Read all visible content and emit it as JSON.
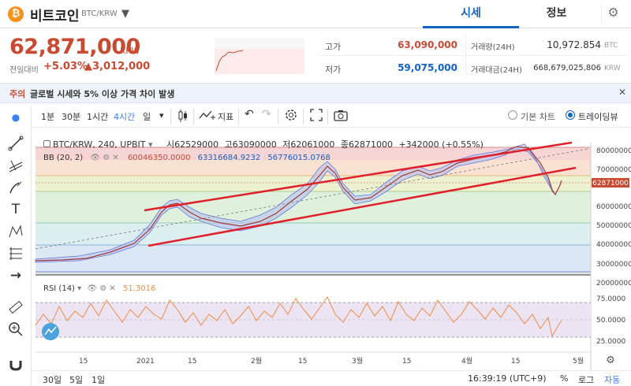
{
  "header": {
    "coin_icon": "₿",
    "coin_name": "비트코인",
    "pair": "BTC/KRW",
    "dropdown_icon": "▼",
    "tab_sise": "시세",
    "tab_info": "정보",
    "gear_icon": "⚙"
  },
  "price_panel": {
    "price": "62,871,000",
    "unit": "KRW",
    "prev_label": "전일대비",
    "change_rate": "+5.03%",
    "change_amount": "▲3,012,000",
    "high_label": "고가",
    "high_value": "63,090,000",
    "low_label": "저가",
    "low_value": "59,075,000",
    "volume_label": "거래량(24H)",
    "volume_value": "10,972.854",
    "volume_unit": "BTC",
    "amount_label": "거래대금(24H)",
    "amount_value": "668,679,025,806",
    "amount_unit": "KRW"
  },
  "notice": {
    "tag": "주의",
    "text": "글로벌 시세와 5% 이상 가격 차이 발생",
    "close_icon": "✕"
  },
  "toolbar": {
    "min1": "1분",
    "min30": "30분",
    "hour1": "1시간",
    "hour4": "4시간",
    "day": "일",
    "dropdown": "▾",
    "indicator": "지표",
    "basic_chart": "기본 차트",
    "tradingview": "트레이딩뷰"
  },
  "chart_legend": {
    "symbol": "BTC/KRW, 240, UPBIT",
    "open": "시62529000",
    "high": "고63090000",
    "low": "저62061000",
    "close": "종62871000",
    "change": "+342000 (+0.55%)",
    "bb_label": "BB (20, 2)",
    "bb_v1": "60046350.0000",
    "bb_v2": "63316684.9232",
    "bb_v3": "56776015.0768",
    "rsi_label": "RSI (14)",
    "rsi_value": "51.3016",
    "last_price_tag": "62871000"
  },
  "axes": {
    "price_ticks": [
      "80000000",
      "70000000",
      "60000000",
      "50000000",
      "40000000",
      "30000000",
      "20000000"
    ],
    "rsi_ticks": [
      "75.0000",
      "50.0000",
      "25.0000"
    ],
    "x_ticks": [
      "15",
      "2021",
      "15",
      "2월",
      "15",
      "3월",
      "15",
      "4월",
      "15",
      "5월"
    ]
  },
  "bottom_bar": {
    "d30": "30일",
    "d5": "5일",
    "d1": "1일",
    "time": "16:39:19 (UTC+9)",
    "percent": "%",
    "log": "로그",
    "auto": "자동"
  },
  "colors": {
    "up": "#c84a31",
    "down": "#1261c4",
    "accent": "#3b82f6",
    "trendline": "#e0202a",
    "rsi": "#f28b46"
  }
}
